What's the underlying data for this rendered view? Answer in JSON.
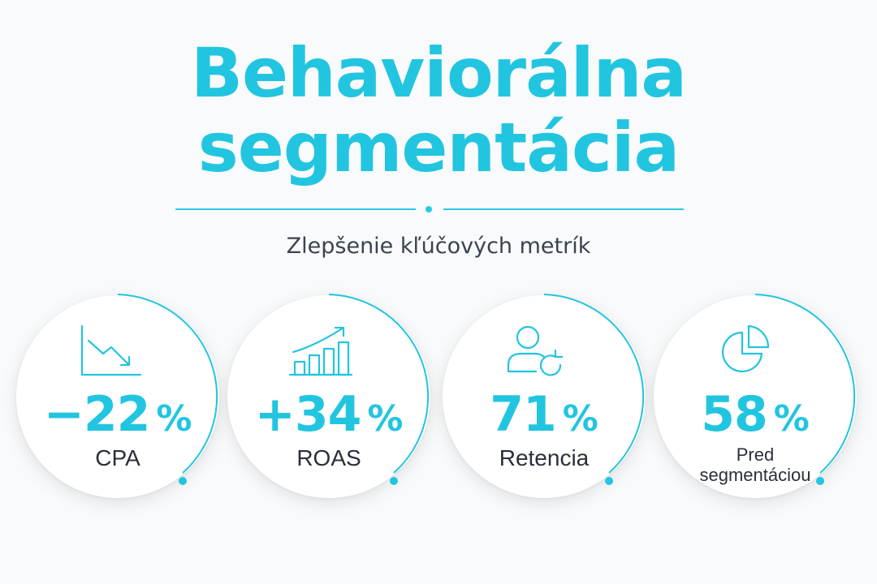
{
  "title": {
    "line1": "Behaviorálna",
    "line2": "segmentácia"
  },
  "subtitle": "Zlepšenie kľúčových metrík",
  "colors": {
    "accent": "#22c5e0",
    "text": "#2a303a",
    "background": "#f9fafb"
  },
  "metrics": [
    {
      "icon": "trend-down-icon",
      "value": "−22",
      "unit": "%",
      "label": "CPA",
      "progress": 0.45
    },
    {
      "icon": "bar-growth-icon",
      "value": "+34",
      "unit": "%",
      "label": "ROAS",
      "progress": 0.45
    },
    {
      "icon": "user-refresh-icon",
      "value": "71",
      "unit": "%",
      "label": "Retencia",
      "progress": 0.45
    },
    {
      "icon": "pie-chart-icon",
      "value": "58",
      "unit": "%",
      "label_line1": "Pred",
      "label_line2": "segmentáciou",
      "progress": 0.45
    }
  ]
}
